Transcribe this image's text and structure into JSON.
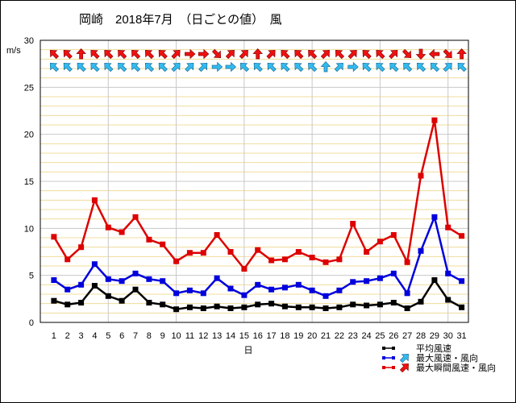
{
  "chart_data": {
    "type": "line",
    "title": "岡崎　2018年7月　（日ごとの値）　風",
    "ylabel": "m/s",
    "xlabel": "日",
    "ylim": [
      0,
      30
    ],
    "yticks": [
      0,
      5,
      10,
      15,
      20,
      25,
      30
    ],
    "x": [
      1,
      2,
      3,
      4,
      5,
      6,
      7,
      8,
      9,
      10,
      11,
      12,
      13,
      14,
      15,
      16,
      17,
      18,
      19,
      20,
      21,
      22,
      23,
      24,
      25,
      26,
      27,
      28,
      29,
      30,
      31
    ],
    "grid": true,
    "legend_position": "bottom-right",
    "series": [
      {
        "name": "平均風速",
        "color": "#000000",
        "values": [
          2.3,
          1.9,
          2.1,
          3.9,
          2.8,
          2.3,
          3.5,
          2.1,
          1.9,
          1.4,
          1.6,
          1.5,
          1.7,
          1.5,
          1.6,
          1.9,
          2.0,
          1.7,
          1.6,
          1.6,
          1.5,
          1.6,
          1.9,
          1.8,
          1.9,
          2.1,
          1.5,
          2.2,
          4.5,
          2.4,
          1.6
        ]
      },
      {
        "name": "最大風速・風向",
        "color": "#0000dd",
        "arrow_color": "#33bbee",
        "values": [
          4.5,
          3.5,
          4.0,
          6.2,
          4.6,
          4.4,
          5.2,
          4.6,
          4.4,
          3.1,
          3.4,
          3.1,
          4.7,
          3.6,
          2.9,
          4.0,
          3.5,
          3.7,
          4.0,
          3.4,
          2.8,
          3.4,
          4.3,
          4.4,
          4.7,
          5.2,
          3.1,
          7.6,
          11.2,
          5.2,
          4.4
        ],
        "direction_deg": [
          315,
          315,
          315,
          315,
          315,
          315,
          315,
          315,
          315,
          45,
          45,
          45,
          90,
          90,
          315,
          315,
          315,
          315,
          315,
          315,
          0,
          45,
          90,
          315,
          315,
          315,
          315,
          315,
          315,
          45,
          315
        ]
      },
      {
        "name": "最大瞬間風速・風向",
        "color": "#dd0000",
        "arrow_color": "#ee1111",
        "values": [
          9.1,
          6.7,
          8.0,
          13.0,
          10.1,
          9.6,
          11.2,
          8.8,
          8.3,
          6.5,
          7.4,
          7.4,
          9.3,
          7.5,
          5.7,
          7.7,
          6.6,
          6.7,
          7.5,
          6.9,
          6.4,
          6.7,
          10.5,
          7.5,
          8.6,
          9.3,
          6.4,
          15.6,
          21.5,
          10.1,
          9.2
        ],
        "direction_deg": [
          315,
          315,
          0,
          315,
          315,
          315,
          315,
          315,
          315,
          45,
          90,
          90,
          135,
          45,
          45,
          0,
          45,
          315,
          315,
          315,
          45,
          315,
          45,
          315,
          315,
          45,
          135,
          180,
          270,
          135,
          0
        ]
      }
    ]
  }
}
